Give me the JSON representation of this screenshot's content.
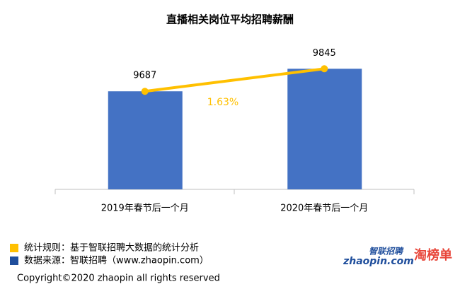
{
  "chart_data": {
    "type": "bar",
    "title": "直播相关岗位平均招聘薪酬",
    "categories": [
      "2019年春节后一个月",
      "2020年春节后一个月"
    ],
    "values": [
      9687,
      9845
    ],
    "color": "#4472c4",
    "line_color": "#ffc000",
    "overlay_line": true,
    "ylim": [
      9000,
      10000
    ],
    "annotation": "1.63%",
    "notes": [
      {
        "text": "统计规则：基于智联招聘大数据的统计分析",
        "color": "#ffc000"
      },
      {
        "text": "数据来源：智联招聘（www.zhaopin.com）",
        "color": "#1f4e9c"
      }
    ],
    "logos": [
      "智联招聘",
      "zhaopin.com",
      "淘榜单"
    ],
    "copyright": "Copyright©2020 zhaopin all rights reserved"
  }
}
